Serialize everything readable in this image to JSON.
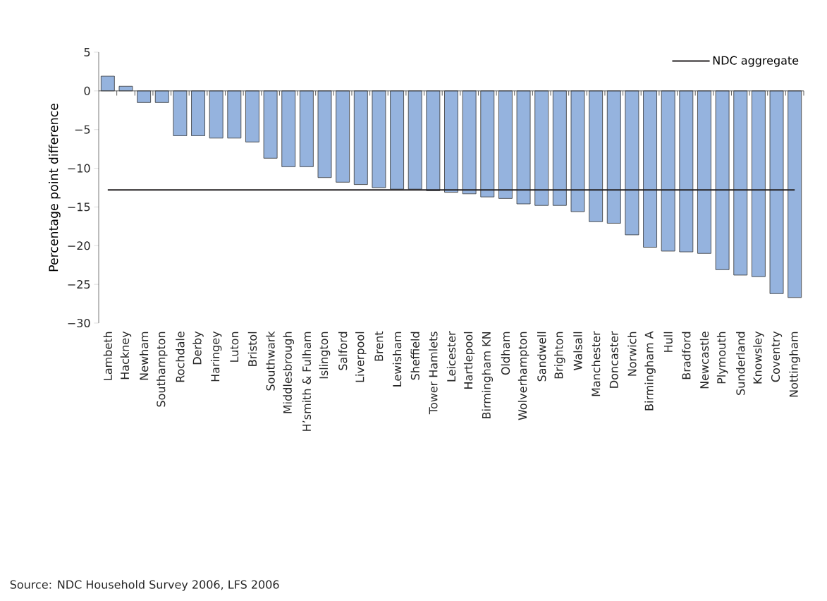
{
  "chart_data": {
    "type": "bar",
    "ylabel": "Percentage point difference",
    "categories": [
      "Lambeth",
      "Hackney",
      "Newham",
      "Southampton",
      "Rochdale",
      "Derby",
      "Haringey",
      "Luton",
      "Bristol",
      "Southwark",
      "Middlesbrough",
      "H’smith & Fulham",
      "Islington",
      "Salford",
      "Liverpool",
      "Brent",
      "Lewisham",
      "Sheffield",
      "Tower Hamlets",
      "Leicester",
      "Hartlepool",
      "Birmingham KN",
      "Oldham",
      "Wolverhampton",
      "Sandwell",
      "Brighton",
      "Walsall",
      "Manchester",
      "Doncaster",
      "Norwich",
      "Birmingham A",
      "Hull",
      "Bradford",
      "Newcastle",
      "Plymouth",
      "Sunderland",
      "Knowsley",
      "Coventry",
      "Nottingham"
    ],
    "values": [
      1.9,
      0.6,
      -1.5,
      -1.5,
      -5.8,
      -5.8,
      -6.1,
      -6.1,
      -6.6,
      -8.7,
      -9.8,
      -9.8,
      -11.2,
      -11.8,
      -12.1,
      -12.5,
      -12.7,
      -12.7,
      -12.9,
      -13.1,
      -13.3,
      -13.7,
      -13.9,
      -14.6,
      -14.8,
      -14.8,
      -15.6,
      -16.9,
      -17.1,
      -18.6,
      -20.2,
      -20.7,
      -20.8,
      -21.0,
      -23.1,
      -23.8,
      -24.0,
      -26.2,
      -26.7
    ],
    "color": "#95b3de",
    "ylim": [
      -30,
      5
    ],
    "yticks": [
      {
        "value": -30,
        "label": "−30"
      },
      {
        "value": -25,
        "label": "−25"
      },
      {
        "value": -20,
        "label": "−20"
      },
      {
        "value": -15,
        "label": "−15"
      },
      {
        "value": -10,
        "label": "−10"
      },
      {
        "value": -5,
        "label": "−5"
      },
      0,
      5
    ],
    "ref_lines": [
      {
        "axis": "y",
        "value": -12.8,
        "label": "NDC aggregate",
        "color": "#231f20",
        "line_style": "solid"
      }
    ],
    "legend": "top right",
    "annotations": [
      "Source: NDC Household Survey 2006, LFS 2006"
    ]
  }
}
